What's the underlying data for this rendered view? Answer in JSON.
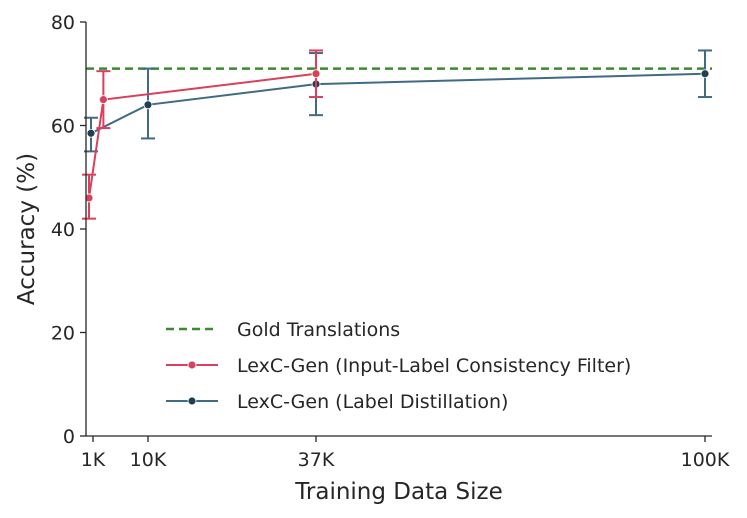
{
  "chart_data": {
    "type": "line",
    "xlabel": "Training Data Size",
    "ylabel": "Accuracy (%)",
    "xlim": [
      0,
      101000
    ],
    "ylim": [
      0,
      80
    ],
    "xticks": [
      {
        "value": 1000,
        "label": "1K"
      },
      {
        "value": 10000,
        "label": "10K"
      },
      {
        "value": 37000,
        "label": "37K"
      },
      {
        "value": 100000,
        "label": "100K"
      }
    ],
    "yticks": [
      {
        "value": 0,
        "label": "0"
      },
      {
        "value": 20,
        "label": "20"
      },
      {
        "value": 40,
        "label": "40"
      },
      {
        "value": 60,
        "label": "60"
      },
      {
        "value": 80,
        "label": "80"
      }
    ],
    "reference_line": {
      "name": "Gold Translations",
      "y": 71,
      "color": "#3a8a2e"
    },
    "series": [
      {
        "name": "LexC-Gen (Input-Label Consistency Filter)",
        "color": "#d9405c",
        "points": [
          {
            "x": 0,
            "y": 46,
            "lo": 42,
            "hi": 50.5
          },
          {
            "x": 2700,
            "y": 65,
            "lo": 59.5,
            "hi": 70.5
          },
          {
            "x": 37000,
            "y": 70,
            "lo": 65.5,
            "hi": 74.5
          }
        ]
      },
      {
        "name": "LexC-Gen (Label Distillation)",
        "color": "#3f6b84",
        "points": [
          {
            "x": 500,
            "y": 58.5,
            "lo": 55,
            "hi": 61.5
          },
          {
            "x": 10000,
            "y": 64,
            "lo": 57.5,
            "hi": 71
          },
          {
            "x": 37000,
            "y": 68,
            "lo": 62,
            "hi": 74
          },
          {
            "x": 100000,
            "y": 70,
            "lo": 65.5,
            "hi": 74.5
          }
        ]
      }
    ],
    "legend_position": "lower-center"
  }
}
